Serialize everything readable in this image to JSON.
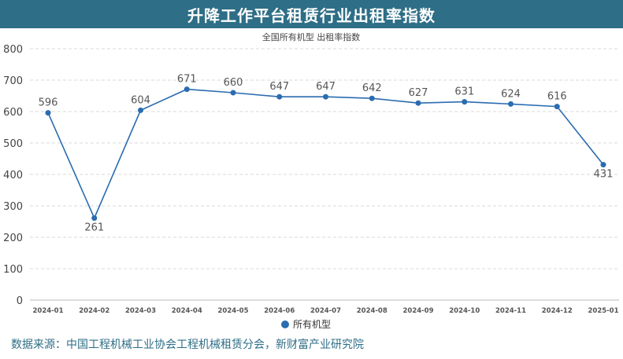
{
  "header": {
    "title": "升降工作平台租赁行业出租率指数"
  },
  "chart_data": {
    "type": "line",
    "title": "全国所有机型  出租率指数",
    "categories": [
      "2024-01",
      "2024-02",
      "2024-03",
      "2024-04",
      "2024-05",
      "2024-06",
      "2024-07",
      "2024-08",
      "2024-09",
      "2024-10",
      "2024-11",
      "2024-12",
      "2025-01"
    ],
    "series": [
      {
        "name": "所有机型",
        "values": [
          596,
          261,
          604,
          671,
          660,
          647,
          647,
          642,
          627,
          631,
          624,
          616,
          431
        ],
        "color": "#2b6cb0"
      }
    ],
    "ylim": [
      0,
      800
    ],
    "yticks": [
      0,
      100,
      200,
      300,
      400,
      500,
      600,
      700,
      800
    ],
    "grid": true,
    "legend_position": "bottom-center",
    "label_below": [
      false,
      true,
      false,
      false,
      false,
      false,
      false,
      false,
      false,
      false,
      false,
      false,
      true
    ]
  },
  "footer": {
    "source": "数据来源：中国工程机械工业协会工程机械租赁分会，新财富产业研究院"
  }
}
